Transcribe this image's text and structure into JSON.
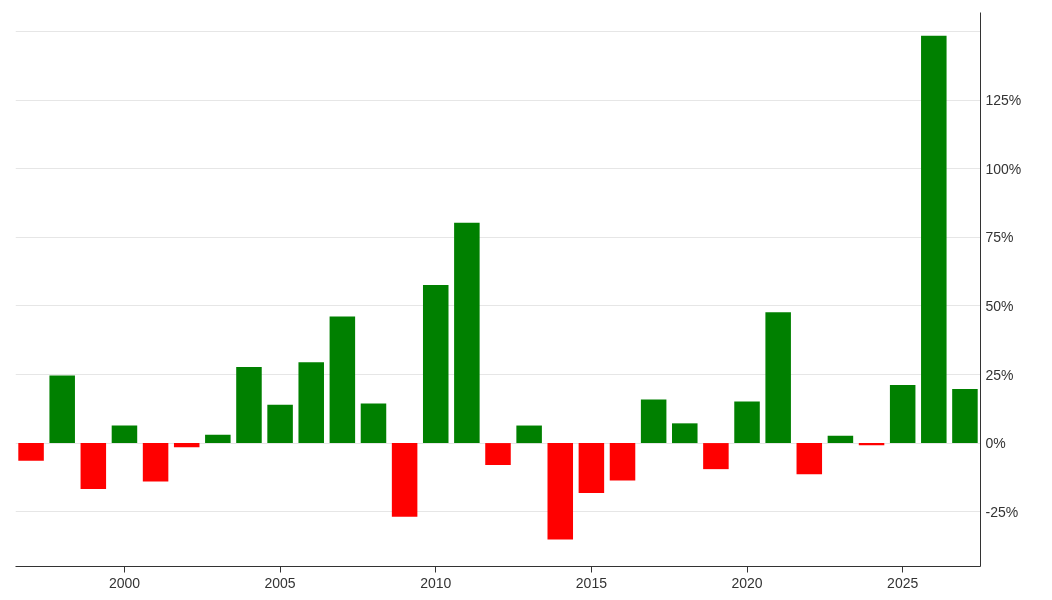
{
  "chart_data": {
    "type": "bar",
    "x": [
      1997,
      1998,
      1999,
      2000,
      2001,
      2002,
      2003,
      2004,
      2005,
      2006,
      2007,
      2008,
      2009,
      2010,
      2011,
      2012,
      2013,
      2014,
      2015,
      2016,
      2017,
      2018,
      2019,
      2020,
      2021,
      2022,
      2023,
      2024,
      2025,
      2026,
      2027
    ],
    "values": [
      -6.4,
      24.6,
      -16.7,
      6.4,
      -14,
      -1.5,
      3,
      27.7,
      14,
      29.5,
      46.2,
      14.4,
      -26.9,
      57.6,
      80.3,
      -8,
      6.4,
      -35.2,
      -18.2,
      -13.6,
      15.9,
      7.2,
      -9.5,
      15.2,
      47.7,
      -11.4,
      2.7,
      -0.8,
      21.2,
      148.5,
      19.7
    ],
    "colors": [
      "#ff0000",
      "#008000",
      "#ff0000",
      "#008000",
      "#ff0000",
      "#ff0000",
      "#008000",
      "#008000",
      "#008000",
      "#008000",
      "#008000",
      "#008000",
      "#ff0000",
      "#008000",
      "#008000",
      "#ff0000",
      "#008000",
      "#ff0000",
      "#ff0000",
      "#ff0000",
      "#008000",
      "#008000",
      "#ff0000",
      "#008000",
      "#008000",
      "#ff0000",
      "#008000",
      "#ff0000",
      "#008000",
      "#008000",
      "#008000"
    ],
    "xlim": [
      1996.5,
      2027.5
    ],
    "xticks": [
      2000,
      2005,
      2010,
      2015,
      2020,
      2025
    ],
    "ylim": [
      -45,
      157
    ],
    "yticks": [
      {
        "value": -25,
        "label": "-25%"
      },
      {
        "value": 0,
        "label": "0%"
      },
      {
        "value": 25,
        "label": "25%"
      },
      {
        "value": 50,
        "label": "50%"
      },
      {
        "value": 75,
        "label": "75%"
      },
      {
        "value": 100,
        "label": "100%"
      },
      {
        "value": 125,
        "label": "125%"
      },
      {
        "value": 150,
        "label": null
      }
    ],
    "grid": "y"
  }
}
